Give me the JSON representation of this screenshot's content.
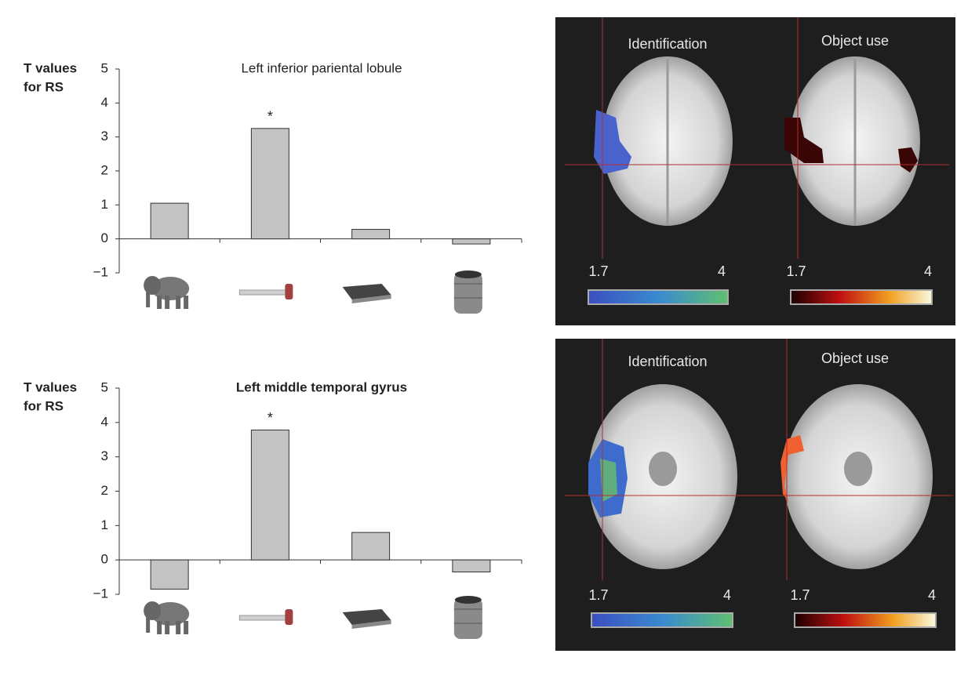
{
  "chart_data": [
    {
      "type": "bar",
      "title": "Left inferior pariental lobule",
      "ylabel": [
        "T values",
        "for RS"
      ],
      "categories": [
        null,
        null,
        null,
        null
      ],
      "values": [
        1.05,
        3.25,
        0.28,
        -0.15
      ],
      "color": "#c3c3c3",
      "ylim": [
        -1,
        5
      ],
      "yticks": [
        {
          "value": -1,
          "label": "−1"
        },
        0,
        1,
        2,
        3,
        4,
        5
      ],
      "annotations": [
        {
          "text": "*",
          "index": 1
        }
      ]
    },
    {
      "type": "bar",
      "title": "Left middle temporal gyrus",
      "ylabel": [
        "T values",
        "for RS"
      ],
      "categories": [
        null,
        null,
        null,
        null
      ],
      "values": [
        -0.85,
        3.78,
        0.8,
        -0.35
      ],
      "color": "#c3c3c3",
      "ylim": [
        -1,
        5
      ],
      "yticks": [
        {
          "value": -1,
          "label": "−1"
        },
        0,
        1,
        2,
        3,
        4,
        5
      ],
      "annotations": [
        {
          "text": "*",
          "index": 1
        }
      ]
    }
  ],
  "panels": [
    {
      "left_title": "Identification",
      "right_title": "Object use",
      "left_scale": [
        "1.7",
        "4"
      ],
      "right_scale": [
        "1.7",
        "4"
      ]
    },
    {
      "left_title": "Identification",
      "right_title": "Object use",
      "left_scale": [
        "1.7",
        "4"
      ],
      "right_scale": [
        "1.7",
        "4"
      ]
    }
  ]
}
